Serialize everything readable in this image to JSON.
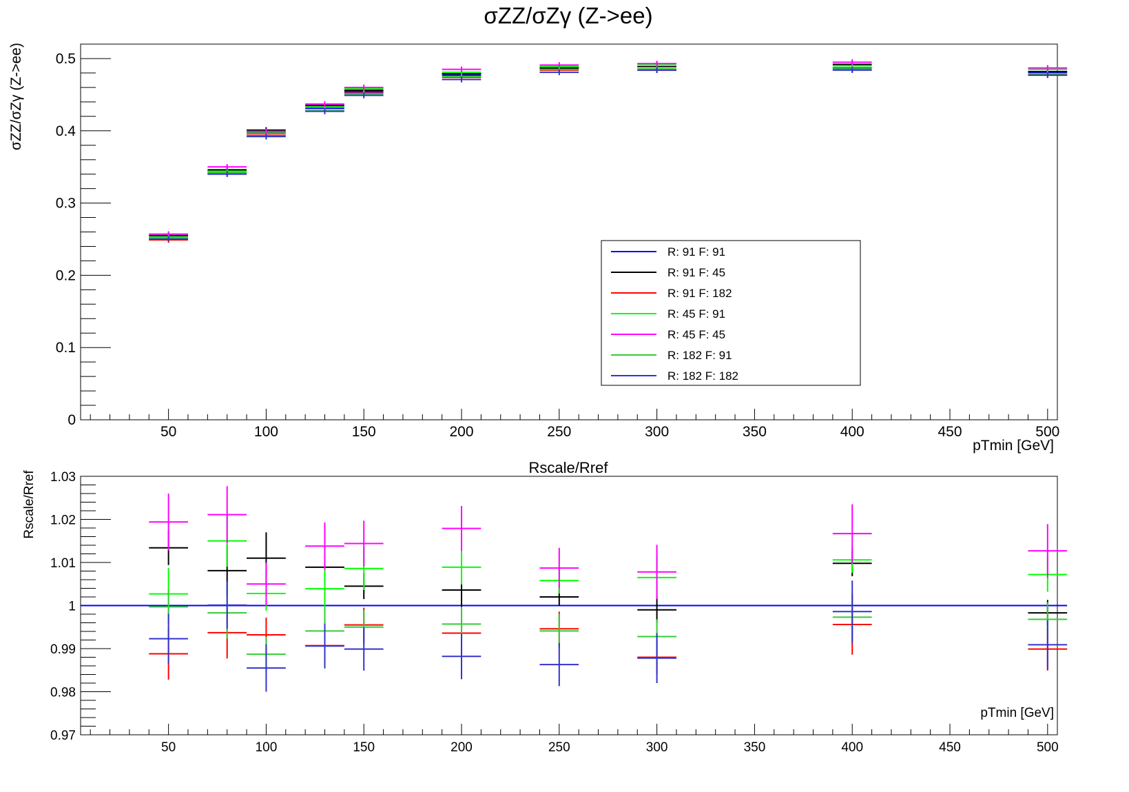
{
  "chart_data": [
    {
      "type": "scatter",
      "title": "σZZ/σZγ (Z->ee)",
      "ylabel": "σZZ/σZγ (Z->ee)",
      "xlabel": "pTmin [GeV]",
      "xlim": [
        5,
        505
      ],
      "ylim": [
        0,
        0.52
      ],
      "xticks": [
        50,
        100,
        150,
        200,
        250,
        300,
        350,
        400,
        450,
        500
      ],
      "yticks": [
        0,
        0.1,
        0.2,
        0.3,
        0.4,
        0.5
      ],
      "ytick_labels": [
        "0",
        "0.1",
        "0.2",
        "0.3",
        "0.4",
        "0.5"
      ],
      "x": [
        50,
        80,
        100,
        130,
        150,
        200,
        250,
        300,
        400,
        500
      ],
      "xerr": 10,
      "legend": "center-right",
      "series": [
        {
          "name": "R: 91  F: 91",
          "color": "#0000ff",
          "values": [
            0.252,
            0.343,
            0.397,
            0.431,
            0.454,
            0.477,
            0.486,
            0.489,
            0.487,
            0.481
          ]
        },
        {
          "name": "R: 91  F: 45",
          "color": "#000000",
          "values": [
            0.255,
            0.346,
            0.401,
            0.435,
            0.456,
            0.479,
            0.487,
            0.489,
            0.492,
            0.482
          ]
        },
        {
          "name": "R: 91  F: 182",
          "color": "#ff0000",
          "values": [
            0.249,
            0.341,
            0.394,
            0.427,
            0.452,
            0.474,
            0.484,
            0.484,
            0.485,
            0.478
          ]
        },
        {
          "name": "R: 45  F: 91",
          "color": "#00ff00",
          "values": [
            0.253,
            0.344,
            0.398,
            0.433,
            0.458,
            0.481,
            0.489,
            0.492,
            0.49,
            0.485
          ]
        },
        {
          "name": "R: 45  F: 45",
          "color": "#ff00ff",
          "values": [
            0.257,
            0.35,
            0.399,
            0.437,
            0.46,
            0.485,
            0.491,
            0.493,
            0.495,
            0.487
          ]
        },
        {
          "name": "R: 182  F: 91",
          "color": "#33cc33",
          "values": [
            0.252,
            0.342,
            0.393,
            0.428,
            0.451,
            0.475,
            0.485,
            0.486,
            0.486,
            0.479
          ]
        },
        {
          "name": "R: 182  F: 182",
          "color": "#3333cc",
          "values": [
            0.25,
            0.34,
            0.392,
            0.427,
            0.449,
            0.471,
            0.481,
            0.484,
            0.484,
            0.477
          ]
        }
      ]
    },
    {
      "type": "scatter",
      "title": "Rscale/Rref",
      "ylabel": "Rscale/Rref",
      "xlabel": "pTmin [GeV]",
      "xlim": [
        5,
        505
      ],
      "ylim": [
        0.97,
        1.03
      ],
      "xticks": [
        50,
        100,
        150,
        200,
        250,
        300,
        350,
        400,
        450,
        500
      ],
      "yticks": [
        0.97,
        0.98,
        0.99,
        1.0,
        1.01,
        1.02,
        1.03
      ],
      "ytick_labels": [
        "0.97",
        "0.98",
        "0.99",
        "1",
        "1.01",
        "1.02",
        "1.03"
      ],
      "x": [
        50,
        80,
        100,
        130,
        150,
        200,
        250,
        300,
        400,
        500
      ],
      "xerr": 10,
      "series": [
        {
          "name": "R: 91  F: 91",
          "color": "#0000ff",
          "values": [
            1.0,
            1.0,
            1.0,
            1.0,
            1.0,
            1.0,
            1.0,
            1.0,
            1.0,
            1.0
          ],
          "errors": [
            0,
            0,
            0,
            0,
            0,
            0,
            0,
            0,
            0,
            0
          ]
        },
        {
          "name": "R: 91  F: 45",
          "color": "#000000",
          "values": [
            1.0134,
            1.0081,
            1.011,
            1.0089,
            1.0045,
            1.0036,
            1.002,
            0.999,
            1.0098,
            0.9983
          ],
          "errors": [
            0.004,
            0.006,
            0.006,
            0.005,
            0.003,
            0.004,
            0.002,
            0.003,
            0.003,
            0.003
          ]
        },
        {
          "name": "R: 91  F: 182",
          "color": "#ff0000",
          "values": [
            0.9888,
            0.9937,
            0.9932,
            0.9907,
            0.9955,
            0.9936,
            0.9946,
            0.988,
            0.9956,
            0.9899
          ],
          "errors": [
            0.006,
            0.006,
            0.004,
            0.004,
            0.004,
            0.005,
            0.004,
            0.004,
            0.007,
            0.005
          ]
        },
        {
          "name": "R: 45  F: 91",
          "color": "#00ff00",
          "values": [
            1.0027,
            1.015,
            1.0028,
            1.0039,
            1.0086,
            1.0089,
            1.0058,
            1.0065,
            1.0106,
            1.0072
          ],
          "errors": [
            0.006,
            0.006,
            0.004,
            0.005,
            0.005,
            0.004,
            0.003,
            0.005,
            0.003,
            0.004
          ]
        },
        {
          "name": "R: 45  F: 45",
          "color": "#ff00ff",
          "values": [
            1.0194,
            1.0211,
            1.005,
            1.0138,
            1.0144,
            1.0179,
            1.0087,
            1.0078,
            1.0167,
            1.0127
          ],
          "errors": [
            0.0066,
            0.0066,
            0.005,
            0.0055,
            0.0053,
            0.0052,
            0.0047,
            0.0063,
            0.0068,
            0.0062
          ]
        },
        {
          "name": "R: 182  F: 91",
          "color": "#33cc33",
          "values": [
            0.9997,
            0.9983,
            0.9887,
            0.9941,
            0.995,
            0.9957,
            0.9941,
            0.9928,
            0.9973,
            0.9968
          ],
          "errors": [
            0.004,
            0.006,
            0.004,
            0.005,
            0.004,
            0.004,
            0.004,
            0.004,
            0.005,
            0.004
          ]
        },
        {
          "name": "R: 182  F: 182",
          "color": "#3333cc",
          "values": [
            0.9923,
            1.0001,
            0.9855,
            0.9906,
            0.9899,
            0.9882,
            0.9863,
            0.9878,
            0.9986,
            0.9909
          ],
          "errors": [
            0.0058,
            0.0055,
            0.0055,
            0.0052,
            0.005,
            0.0053,
            0.005,
            0.0058,
            0.0072,
            0.0057
          ]
        }
      ]
    }
  ]
}
